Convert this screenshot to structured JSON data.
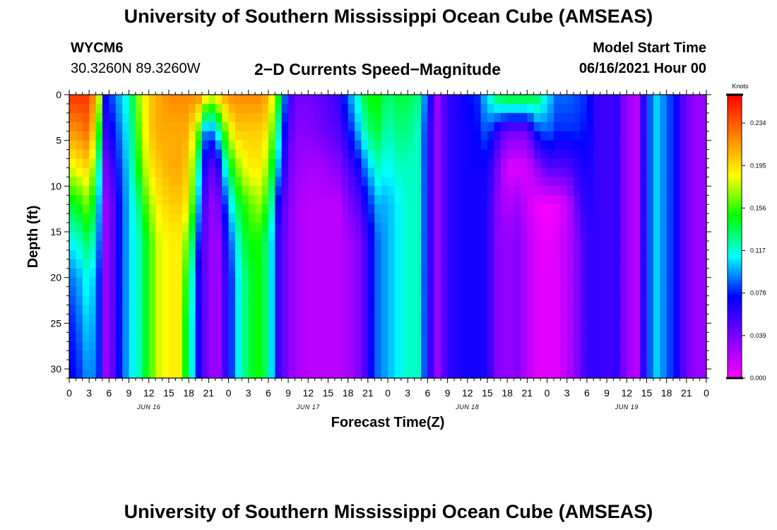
{
  "header": {
    "title": "University of Southern Mississippi Ocean Cube (AMSEAS)",
    "station_id": "WYCM6",
    "coordinates": "30.3260N  89.3260W",
    "subtitle": "2−D Currents Speed−Magnitude",
    "model_start_label": "Model Start Time",
    "model_start_value": "06/16/2021 Hour 00"
  },
  "footer": {
    "title": "University of Southern Mississippi Ocean Cube (AMSEAS)"
  },
  "chart_data": {
    "type": "heatmap",
    "title": "2−D Currents Speed−Magnitude",
    "xlabel": "Forecast Time(Z)",
    "ylabel": "Depth (ft)",
    "y_inverted": true,
    "xlim": [
      0,
      96
    ],
    "ylim": [
      0,
      31
    ],
    "x_tick_labels": [
      "0",
      "3",
      "6",
      "9",
      "12",
      "15",
      "18",
      "21",
      "0",
      "3",
      "6",
      "9",
      "12",
      "15",
      "18",
      "21",
      "0",
      "3",
      "6",
      "9",
      "12",
      "15",
      "18",
      "21",
      "0",
      "3",
      "6",
      "9",
      "12",
      "15",
      "18",
      "21",
      "0"
    ],
    "x_date_labels": [
      "JUN 16",
      "JUN 17",
      "JUN 18",
      "JUN 19"
    ],
    "y_ticks": [
      0,
      5,
      10,
      15,
      20,
      25,
      30
    ],
    "colorbar": {
      "unit": "Knots",
      "range": [
        0,
        0.26
      ],
      "ticks": [
        "0.000",
        "0.039",
        "0.078",
        "0.117",
        "0.156",
        "0.195",
        "0.234"
      ],
      "colors": [
        "#ff00ff",
        "#7f00ff",
        "#0000ff",
        "#00ffff",
        "#00ff00",
        "#ffff00",
        "#ff7f00",
        "#ff0000"
      ]
    },
    "time_hours": [
      0,
      1.5,
      3,
      4.5,
      5,
      5.5,
      6,
      7.5,
      9,
      10.5,
      12,
      13.5,
      15,
      16.5,
      18,
      19.5,
      20,
      21,
      22.5,
      24,
      25.5,
      27,
      28.5,
      30,
      31.5,
      33,
      34.5,
      36,
      37.5,
      39,
      40.5,
      42,
      43.5,
      45,
      46.5,
      48,
      49.5,
      51,
      52.5,
      54,
      55.5,
      57,
      58.5,
      60,
      61.5,
      63,
      64.5,
      66,
      67.5,
      69,
      70.5,
      72,
      73.5,
      75,
      76.5,
      78,
      79.5,
      81,
      82.5,
      84,
      85.5,
      87,
      88.5,
      90,
      91.5,
      93,
      94.5,
      96
    ],
    "depth_ft": [
      0,
      4,
      8,
      12,
      16,
      20,
      25,
      31
    ],
    "speed_knots": [
      [
        0.245,
        0.215,
        0.18,
        0.14,
        0.11,
        0.09,
        0.075,
        0.07
      ],
      [
        0.245,
        0.22,
        0.19,
        0.15,
        0.12,
        0.1,
        0.09,
        0.08
      ],
      [
        0.245,
        0.23,
        0.2,
        0.17,
        0.14,
        0.12,
        0.11,
        0.1
      ],
      [
        0.18,
        0.15,
        0.12,
        0.1,
        0.09,
        0.08,
        0.08,
        0.08
      ],
      [
        0.09,
        0.07,
        0.06,
        0.05,
        0.05,
        0.05,
        0.05,
        0.05
      ],
      [
        0.075,
        0.06,
        0.04,
        0.03,
        0.03,
        0.03,
        0.03,
        0.03
      ],
      [
        0.08,
        0.065,
        0.045,
        0.03,
        0.03,
        0.03,
        0.03,
        0.03
      ],
      [
        0.1,
        0.09,
        0.08,
        0.075,
        0.075,
        0.075,
        0.075,
        0.075
      ],
      [
        0.12,
        0.115,
        0.11,
        0.105,
        0.105,
        0.105,
        0.105,
        0.105
      ],
      [
        0.17,
        0.16,
        0.15,
        0.13,
        0.12,
        0.12,
        0.12,
        0.12
      ],
      [
        0.2,
        0.2,
        0.19,
        0.17,
        0.155,
        0.155,
        0.155,
        0.155
      ],
      [
        0.21,
        0.21,
        0.2,
        0.19,
        0.18,
        0.18,
        0.18,
        0.18
      ],
      [
        0.22,
        0.21,
        0.21,
        0.2,
        0.19,
        0.19,
        0.19,
        0.19
      ],
      [
        0.22,
        0.21,
        0.21,
        0.2,
        0.19,
        0.19,
        0.19,
        0.19
      ],
      [
        0.22,
        0.21,
        0.2,
        0.19,
        0.16,
        0.14,
        0.13,
        0.13
      ],
      [
        0.22,
        0.16,
        0.12,
        0.1,
        0.08,
        0.07,
        0.07,
        0.07
      ],
      [
        0.22,
        0.11,
        0.09,
        0.07,
        0.06,
        0.06,
        0.06,
        0.06
      ],
      [
        0.18,
        0.08,
        0.04,
        0.03,
        0.03,
        0.03,
        0.03,
        0.03
      ],
      [
        0.2,
        0.12,
        0.06,
        0.04,
        0.03,
        0.03,
        0.03,
        0.03
      ],
      [
        0.22,
        0.18,
        0.14,
        0.1,
        0.08,
        0.07,
        0.07,
        0.07
      ],
      [
        0.22,
        0.2,
        0.17,
        0.14,
        0.12,
        0.11,
        0.11,
        0.11
      ],
      [
        0.22,
        0.2,
        0.19,
        0.16,
        0.15,
        0.14,
        0.14,
        0.14
      ],
      [
        0.22,
        0.2,
        0.19,
        0.17,
        0.15,
        0.15,
        0.15,
        0.15
      ],
      [
        0.21,
        0.19,
        0.17,
        0.15,
        0.13,
        0.13,
        0.13,
        0.13
      ],
      [
        0.15,
        0.12,
        0.1,
        0.07,
        0.06,
        0.06,
        0.06,
        0.06
      ],
      [
        0.06,
        0.05,
        0.04,
        0.035,
        0.035,
        0.035,
        0.035,
        0.035
      ],
      [
        0.04,
        0.035,
        0.03,
        0.025,
        0.025,
        0.025,
        0.025,
        0.025
      ],
      [
        0.04,
        0.035,
        0.025,
        0.02,
        0.02,
        0.02,
        0.02,
        0.02
      ],
      [
        0.045,
        0.04,
        0.025,
        0.02,
        0.02,
        0.02,
        0.02,
        0.02
      ],
      [
        0.05,
        0.045,
        0.03,
        0.02,
        0.02,
        0.02,
        0.02,
        0.02
      ],
      [
        0.06,
        0.05,
        0.035,
        0.02,
        0.02,
        0.02,
        0.02,
        0.02
      ],
      [
        0.09,
        0.07,
        0.05,
        0.035,
        0.025,
        0.025,
        0.025,
        0.025
      ],
      [
        0.12,
        0.1,
        0.07,
        0.05,
        0.035,
        0.035,
        0.035,
        0.035
      ],
      [
        0.15,
        0.13,
        0.1,
        0.075,
        0.06,
        0.06,
        0.06,
        0.06
      ],
      [
        0.15,
        0.14,
        0.12,
        0.1,
        0.09,
        0.09,
        0.09,
        0.09
      ],
      [
        0.13,
        0.12,
        0.11,
        0.1,
        0.1,
        0.1,
        0.1,
        0.1
      ],
      [
        0.14,
        0.13,
        0.12,
        0.11,
        0.11,
        0.11,
        0.11,
        0.11
      ],
      [
        0.14,
        0.13,
        0.12,
        0.12,
        0.12,
        0.12,
        0.12,
        0.12
      ],
      [
        0.13,
        0.12,
        0.12,
        0.12,
        0.12,
        0.12,
        0.12,
        0.12
      ],
      [
        0.08,
        0.07,
        0.07,
        0.07,
        0.07,
        0.07,
        0.07,
        0.07
      ],
      [
        0.03,
        0.03,
        0.03,
        0.03,
        0.03,
        0.03,
        0.03,
        0.03
      ],
      [
        0.06,
        0.06,
        0.06,
        0.06,
        0.06,
        0.06,
        0.06,
        0.06
      ],
      [
        0.065,
        0.065,
        0.065,
        0.065,
        0.065,
        0.065,
        0.065,
        0.065
      ],
      [
        0.075,
        0.07,
        0.07,
        0.07,
        0.07,
        0.07,
        0.07,
        0.07
      ],
      [
        0.08,
        0.075,
        0.07,
        0.07,
        0.07,
        0.07,
        0.07,
        0.07
      ],
      [
        0.11,
        0.09,
        0.07,
        0.065,
        0.065,
        0.065,
        0.065,
        0.065
      ],
      [
        0.14,
        0.06,
        0.04,
        0.035,
        0.035,
        0.035,
        0.035,
        0.035
      ],
      [
        0.15,
        0.04,
        0.01,
        0.02,
        0.03,
        0.03,
        0.03,
        0.03
      ],
      [
        0.15,
        0.04,
        0.01,
        0.03,
        0.035,
        0.035,
        0.035,
        0.035
      ],
      [
        0.15,
        0.04,
        0.012,
        0.015,
        0.02,
        0.02,
        0.02,
        0.02
      ],
      [
        0.14,
        0.08,
        0.03,
        0.005,
        0.01,
        0.01,
        0.01,
        0.01
      ],
      [
        0.11,
        0.09,
        0.05,
        0.002,
        0.005,
        0.008,
        0.008,
        0.008
      ],
      [
        0.09,
        0.08,
        0.05,
        0.005,
        0.01,
        0.01,
        0.01,
        0.01
      ],
      [
        0.09,
        0.08,
        0.05,
        0.015,
        0.02,
        0.02,
        0.02,
        0.02
      ],
      [
        0.085,
        0.08,
        0.06,
        0.045,
        0.035,
        0.035,
        0.035,
        0.035
      ],
      [
        0.08,
        0.075,
        0.07,
        0.065,
        0.06,
        0.06,
        0.06,
        0.06
      ],
      [
        0.06,
        0.06,
        0.06,
        0.06,
        0.06,
        0.06,
        0.06,
        0.06
      ],
      [
        0.055,
        0.055,
        0.055,
        0.055,
        0.055,
        0.055,
        0.055,
        0.055
      ],
      [
        0.06,
        0.06,
        0.06,
        0.06,
        0.06,
        0.06,
        0.06,
        0.06
      ],
      [
        0.03,
        0.03,
        0.03,
        0.03,
        0.03,
        0.03,
        0.03,
        0.03
      ],
      [
        0.02,
        0.02,
        0.02,
        0.02,
        0.02,
        0.02,
        0.02,
        0.02
      ],
      [
        0.08,
        0.08,
        0.08,
        0.08,
        0.08,
        0.08,
        0.08,
        0.08
      ],
      [
        0.105,
        0.105,
        0.105,
        0.105,
        0.105,
        0.105,
        0.105,
        0.105
      ],
      [
        0.09,
        0.09,
        0.09,
        0.09,
        0.09,
        0.09,
        0.09,
        0.09
      ],
      [
        0.07,
        0.07,
        0.07,
        0.07,
        0.07,
        0.07,
        0.07,
        0.07
      ],
      [
        0.04,
        0.04,
        0.04,
        0.04,
        0.04,
        0.04,
        0.04,
        0.04
      ],
      [
        0.03,
        0.03,
        0.03,
        0.03,
        0.03,
        0.03,
        0.03,
        0.03
      ],
      [
        0.03,
        0.03,
        0.03,
        0.03,
        0.03,
        0.03,
        0.03,
        0.03
      ]
    ]
  }
}
